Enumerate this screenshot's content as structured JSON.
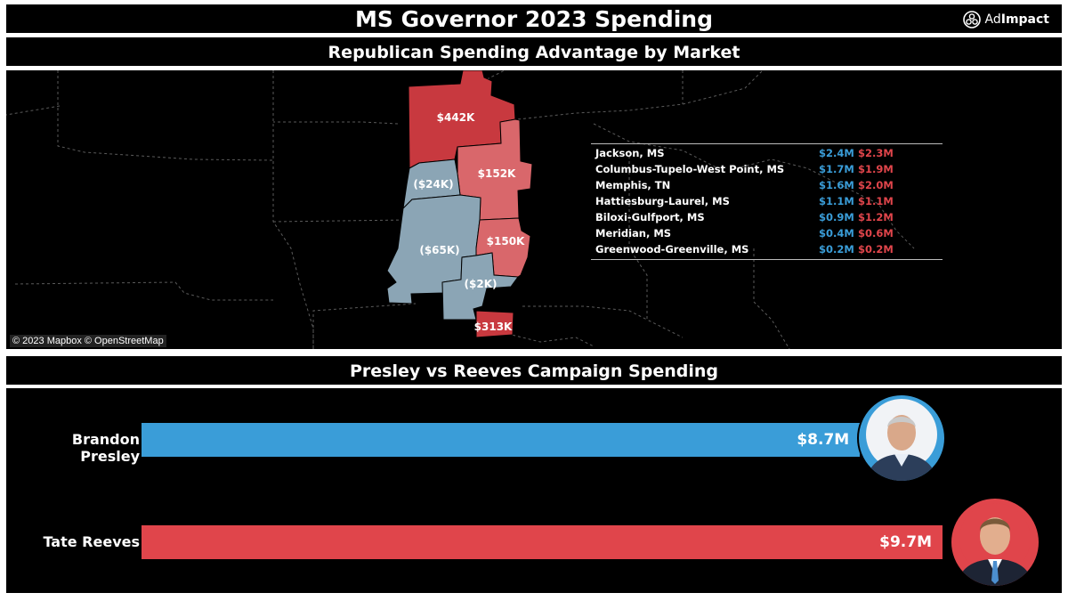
{
  "header": {
    "title": "MS Governor 2023 Spending",
    "logo_prefix": "Ad",
    "logo_suffix": "Impact"
  },
  "map_section": {
    "title": "Republican Spending Advantage by Market",
    "attribution": "© 2023 Mapbox © OpenStreetMap",
    "region_labels": [
      {
        "label": "$442K",
        "market": "Memphis, TN",
        "color": "#c8393f"
      },
      {
        "label": "$152K",
        "market": "Columbus-Tupelo-West Point, MS",
        "color": "#d9676b"
      },
      {
        "label": "($24K)",
        "market": "Greenwood-Greenville, MS",
        "color": "#8ba5b5"
      },
      {
        "label": "($65K)",
        "market": "Jackson, MS",
        "color": "#8ba5b5"
      },
      {
        "label": "$150K",
        "market": "Meridian, MS",
        "color": "#d9676b"
      },
      {
        "label": "($2K)",
        "market": "Hattiesburg-Laurel, MS",
        "color": "#8ba5b5"
      },
      {
        "label": "$313K",
        "market": "Biloxi-Gulfport, MS",
        "color": "#c8393f"
      }
    ],
    "markets": [
      {
        "name": "Jackson, MS",
        "dem": "$2.4M",
        "rep": "$2.3M"
      },
      {
        "name": "Columbus-Tupelo-West Point, MS",
        "dem": "$1.7M",
        "rep": "$1.9M"
      },
      {
        "name": "Memphis, TN",
        "dem": "$1.6M",
        "rep": "$2.0M"
      },
      {
        "name": "Hattiesburg-Laurel, MS",
        "dem": "$1.1M",
        "rep": "$1.1M"
      },
      {
        "name": "Biloxi-Gulfport, MS",
        "dem": "$0.9M",
        "rep": "$1.2M"
      },
      {
        "name": "Meridian, MS",
        "dem": "$0.4M",
        "rep": "$0.6M"
      },
      {
        "name": "Greenwood-Greenville, MS",
        "dem": "$0.2M",
        "rep": "$0.2M"
      }
    ]
  },
  "spending_section": {
    "title": "Presley vs Reeves Campaign Spending",
    "candidates": [
      {
        "name": "Brandon Presley",
        "label": "$8.7M",
        "value": 8.7,
        "color": "#3a9dd8",
        "avatar": "presley-avatar-icon"
      },
      {
        "name": "Tate Reeves",
        "label": "$9.7M",
        "value": 9.7,
        "color": "#e0454b",
        "avatar": "reeves-avatar-icon"
      }
    ]
  },
  "colors": {
    "democrat": "#3a9dd8",
    "republican": "#e0454b",
    "background": "#000000"
  }
}
